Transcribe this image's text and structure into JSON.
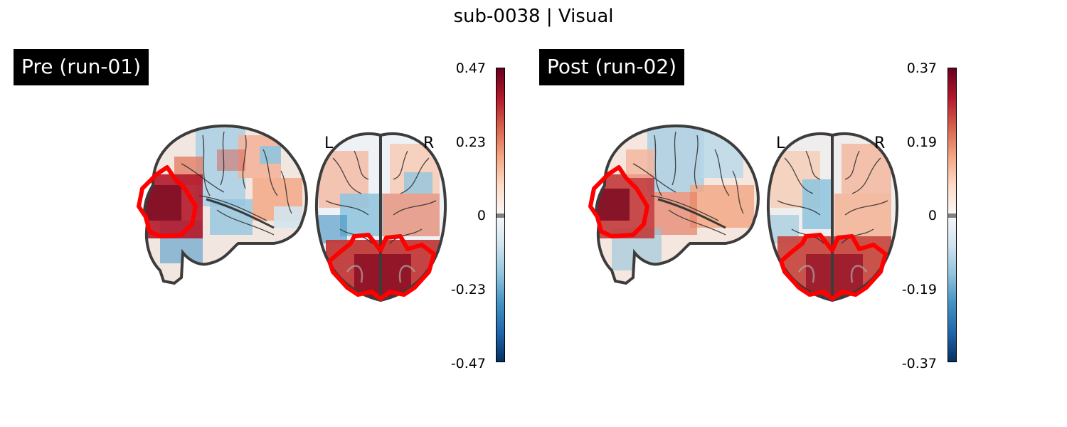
{
  "title": "sub-0038 | Visual",
  "panels": [
    {
      "label": "Pre (run-01)",
      "orientation_left": "L",
      "orientation_right": "R",
      "colorbar": {
        "max": 0.47,
        "min": -0.47,
        "ticks": [
          "0.47",
          "0.23",
          "0",
          "-0.23",
          "-0.47"
        ],
        "colormap": [
          "#053061",
          "#2166ac",
          "#4393c3",
          "#92c5de",
          "#d1e5f0",
          "#f7f7f7",
          "#fddbc7",
          "#f4a582",
          "#d6604d",
          "#b2182b",
          "#67001f"
        ],
        "threshold_color": "#808080"
      }
    },
    {
      "label": "Post (run-02)",
      "orientation_left": "L",
      "orientation_right": "R",
      "colorbar": {
        "max": 0.37,
        "min": -0.37,
        "ticks": [
          "0.37",
          "0.19",
          "0",
          "-0.19",
          "-0.37"
        ],
        "colormap": [
          "#053061",
          "#2166ac",
          "#4393c3",
          "#92c5de",
          "#d1e5f0",
          "#f7f7f7",
          "#fddbc7",
          "#f4a582",
          "#d6604d",
          "#b2182b",
          "#67001f"
        ],
        "threshold_color": "#808080"
      }
    }
  ],
  "roi_outline_color": "#ff0000",
  "brain_outline_color": "#3c3c3c"
}
